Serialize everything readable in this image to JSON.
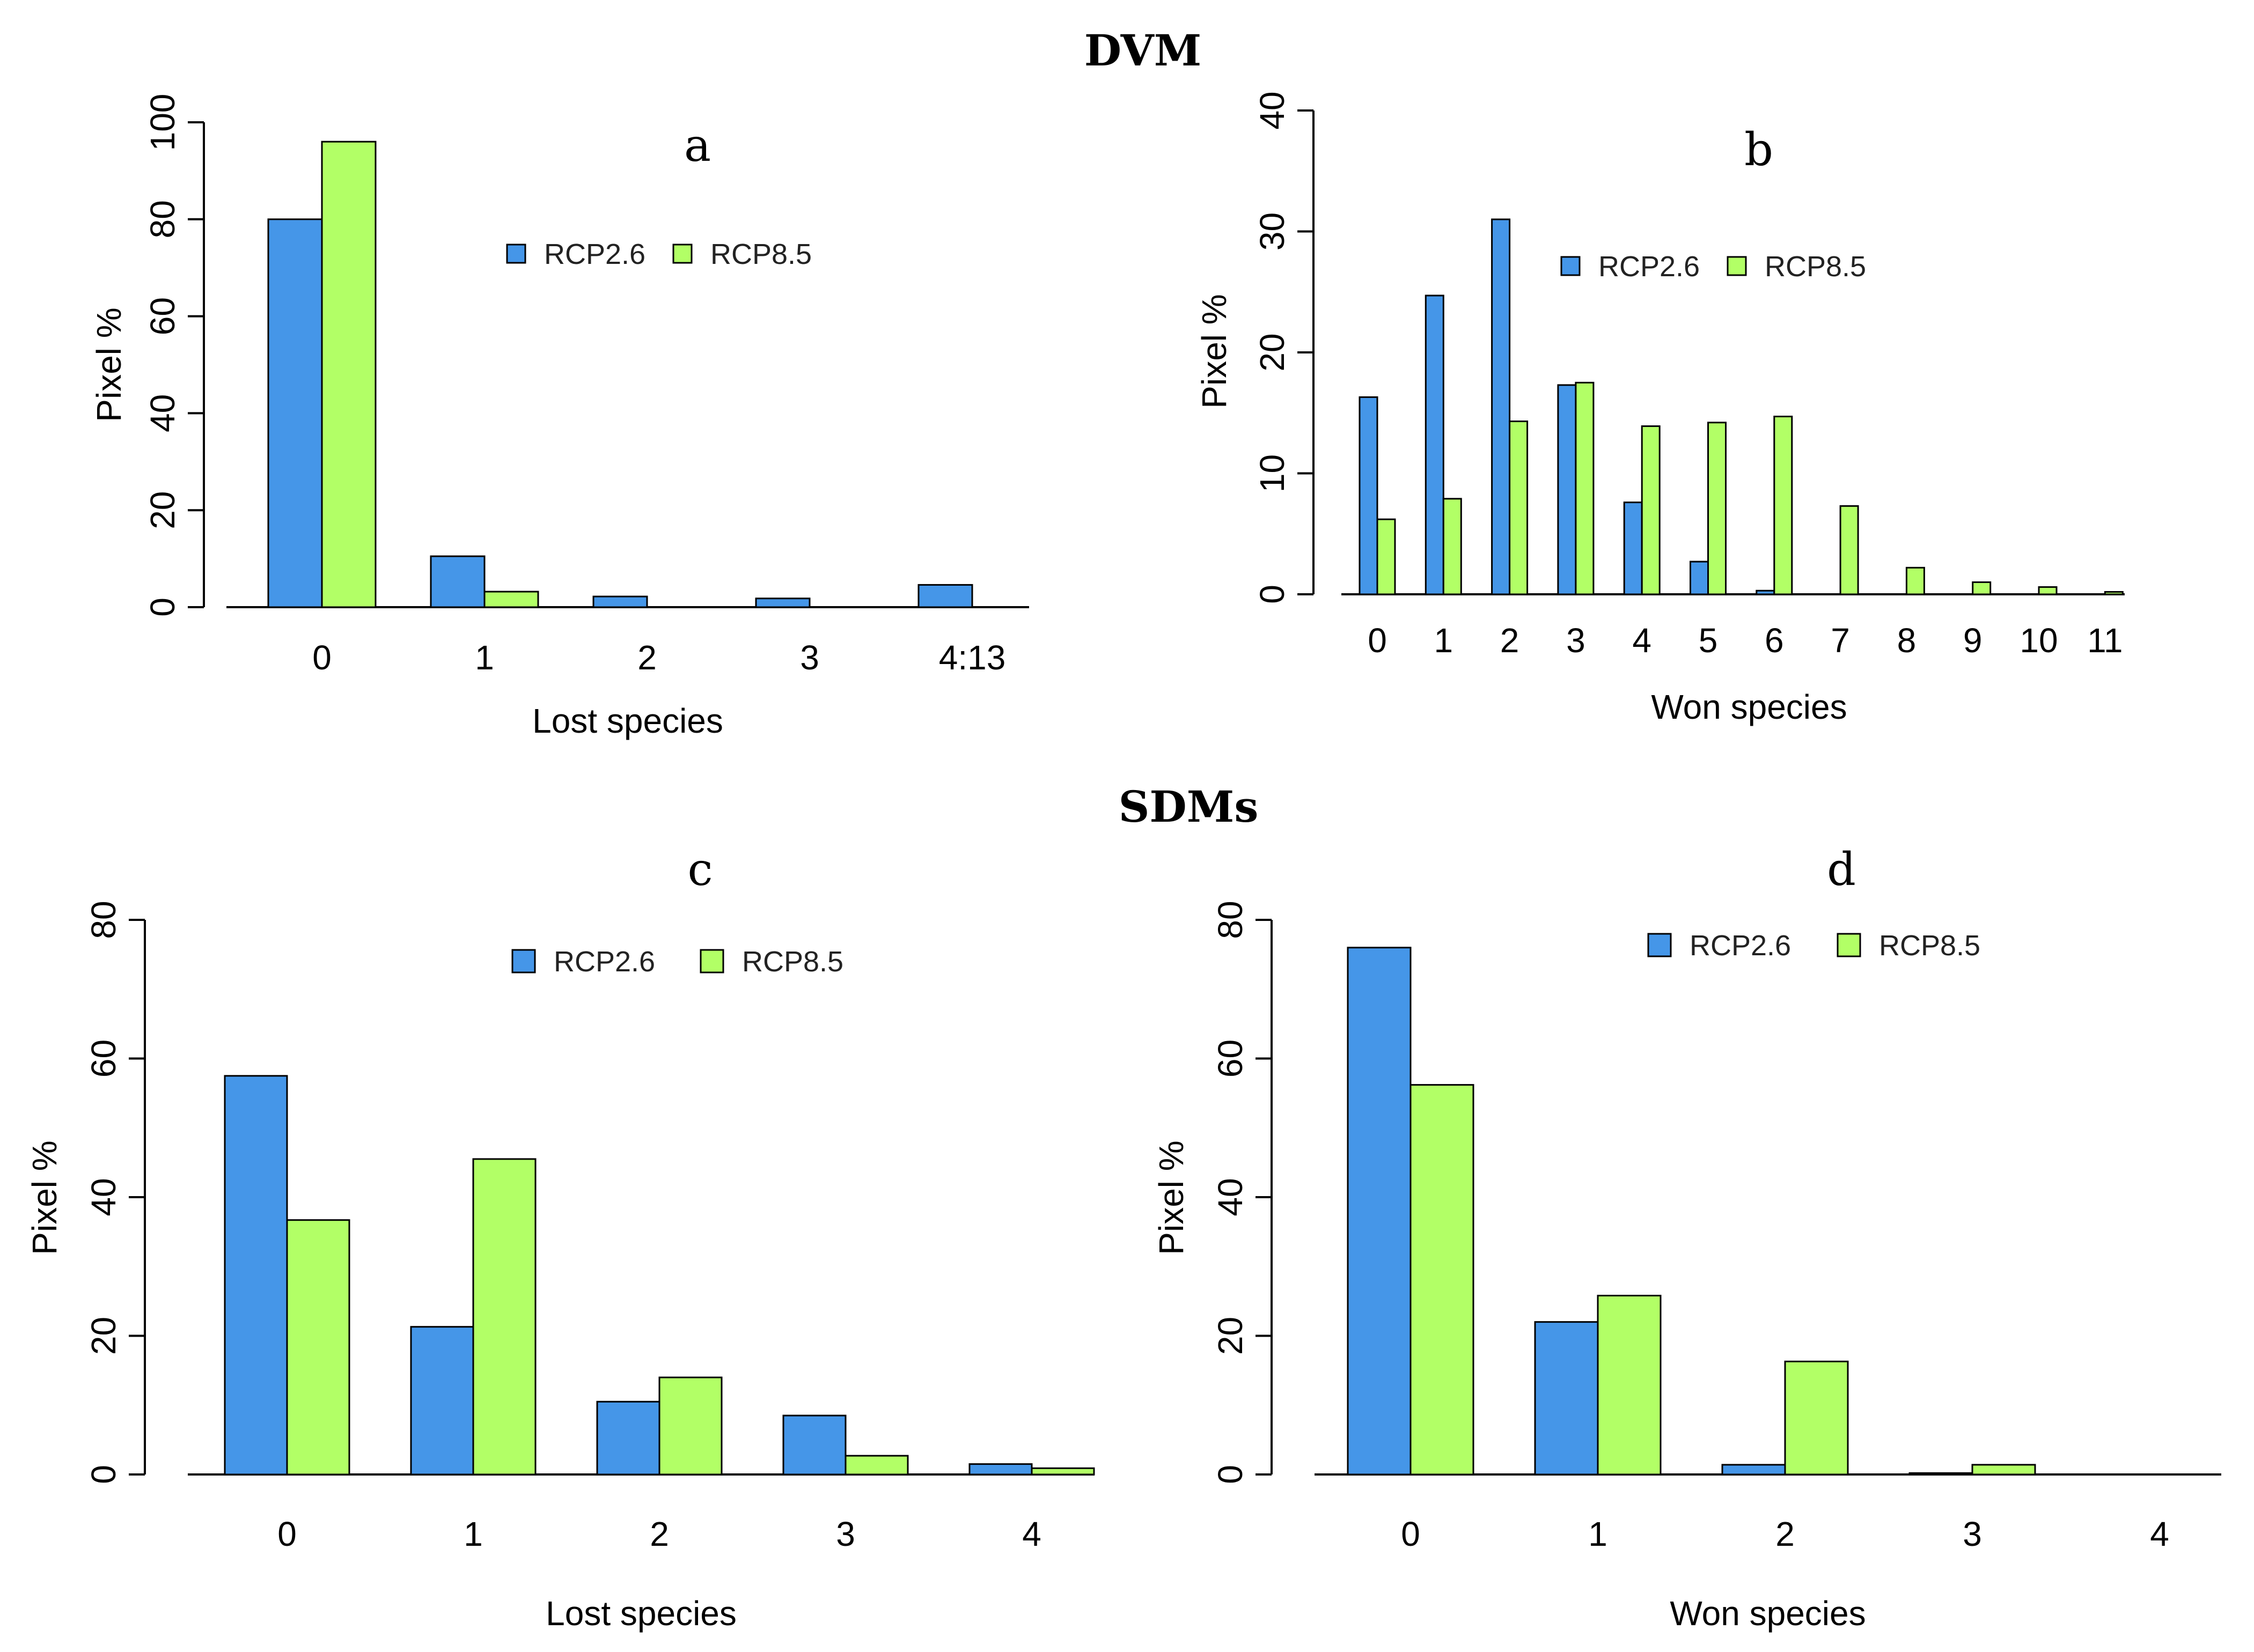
{
  "sections": {
    "top": "DVM",
    "bottom": "SDMs"
  },
  "colors": {
    "rcp26": "#4596E8",
    "rcp85": "#B2FF66",
    "outline": "#000000"
  },
  "chart_data": [
    {
      "type": "bar",
      "panel_label": "a",
      "categories": [
        "0",
        "1",
        "2",
        "3",
        "4:13"
      ],
      "series": [
        {
          "name": "RCP2.6",
          "values": [
            80,
            10.5,
            2.2,
            1.8,
            4.6
          ]
        },
        {
          "name": "RCP8.5",
          "values": [
            96,
            3.2,
            0,
            0,
            0
          ]
        }
      ],
      "xlabel": "Lost species",
      "ylabel": "Pixel %",
      "ylim": [
        0,
        100
      ],
      "yticks": [
        0,
        20,
        40,
        60,
        80,
        100
      ],
      "legend": "top-center"
    },
    {
      "type": "bar",
      "panel_label": "b",
      "categories": [
        "0",
        "1",
        "2",
        "3",
        "4",
        "5",
        "6",
        "7",
        "8",
        "9",
        "10",
        "11"
      ],
      "series": [
        {
          "name": "RCP2.6",
          "values": [
            16.3,
            24.7,
            31,
            17.3,
            7.6,
            2.7,
            0.3,
            0,
            0,
            0,
            0,
            0
          ]
        },
        {
          "name": "RCP8.5",
          "values": [
            6.2,
            7.9,
            14.3,
            17.5,
            13.9,
            14.2,
            14.7,
            7.3,
            2.2,
            1,
            0.6,
            0.2
          ]
        }
      ],
      "xlabel": "Won species",
      "ylabel": "Pixel %",
      "ylim": [
        0,
        40
      ],
      "yticks": [
        0,
        10,
        20,
        30,
        40
      ],
      "legend": "top-center"
    },
    {
      "type": "bar",
      "panel_label": "c",
      "categories": [
        "0",
        "1",
        "2",
        "3",
        "4"
      ],
      "series": [
        {
          "name": "RCP2.6",
          "values": [
            57.5,
            21.3,
            10.5,
            8.5,
            1.5
          ]
        },
        {
          "name": "RCP8.5",
          "values": [
            36.7,
            45.5,
            14,
            2.7,
            0.9
          ]
        }
      ],
      "xlabel": "Lost species",
      "ylabel": "Pixel %",
      "ylim": [
        0,
        80
      ],
      "yticks": [
        0,
        20,
        40,
        60,
        80
      ],
      "legend": "top-center"
    },
    {
      "type": "bar",
      "panel_label": "d",
      "categories": [
        "0",
        "1",
        "2",
        "3",
        "4"
      ],
      "series": [
        {
          "name": "RCP2.6",
          "values": [
            76,
            22,
            1.4,
            0.2,
            0
          ]
        },
        {
          "name": "RCP8.5",
          "values": [
            56.2,
            25.8,
            16.3,
            1.4,
            0
          ]
        }
      ],
      "xlabel": "Won species",
      "ylabel": "Pixel %",
      "ylim": [
        0,
        80
      ],
      "yticks": [
        0,
        20,
        40,
        60,
        80
      ],
      "legend": "top-center"
    }
  ]
}
